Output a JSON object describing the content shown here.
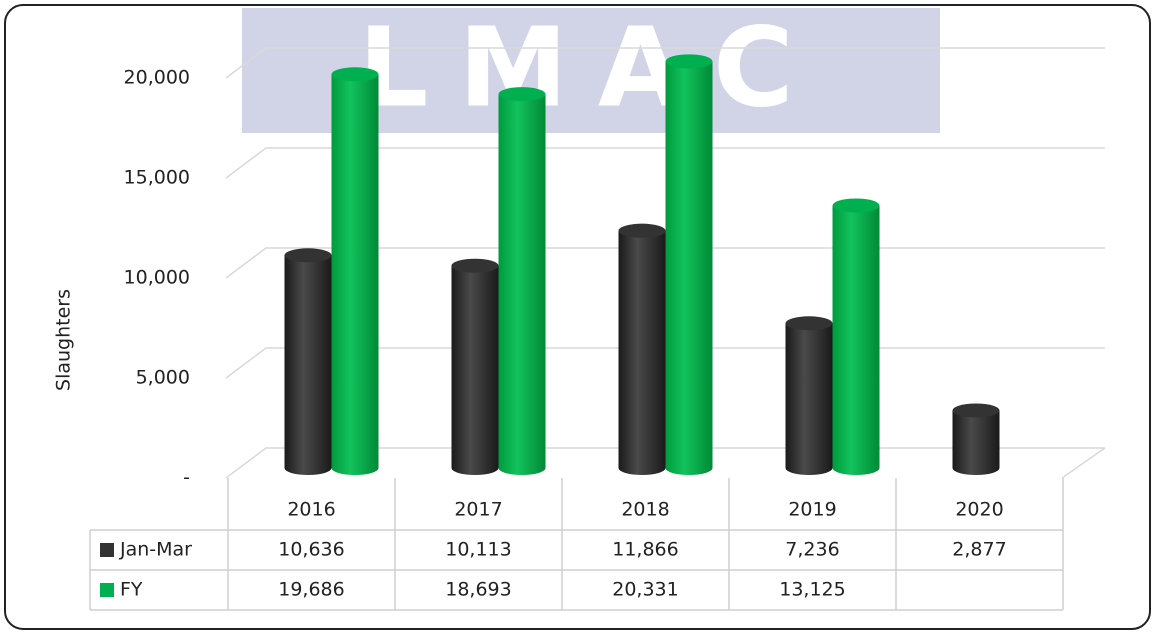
{
  "watermark": "LMAC",
  "chart_data": {
    "type": "bar3d",
    "y_label": "Slaughters",
    "categories": [
      "2016",
      "2017",
      "2018",
      "2019",
      "2020"
    ],
    "series": [
      {
        "name": "Jan-Mar",
        "color": "#333333",
        "values": [
          10636,
          10113,
          11866,
          7236,
          2877
        ],
        "value_labels": [
          "10,636",
          "10,113",
          "11,866",
          "7,236",
          "2,877"
        ]
      },
      {
        "name": "FY",
        "color": "#00b050",
        "values": [
          19686,
          18693,
          20331,
          13125,
          null
        ],
        "value_labels": [
          "19,686",
          "18,693",
          "20,331",
          "13,125",
          null
        ]
      }
    ],
    "ylim": [
      0,
      21500
    ],
    "yticks": [
      {
        "value": 0,
        "label": "-"
      },
      {
        "value": 5000,
        "label": "5,000"
      },
      {
        "value": 10000,
        "label": "10,000"
      },
      {
        "value": 15000,
        "label": "15,000"
      },
      {
        "value": 20000,
        "label": "20,000"
      }
    ],
    "grid": true,
    "data_table": true
  }
}
